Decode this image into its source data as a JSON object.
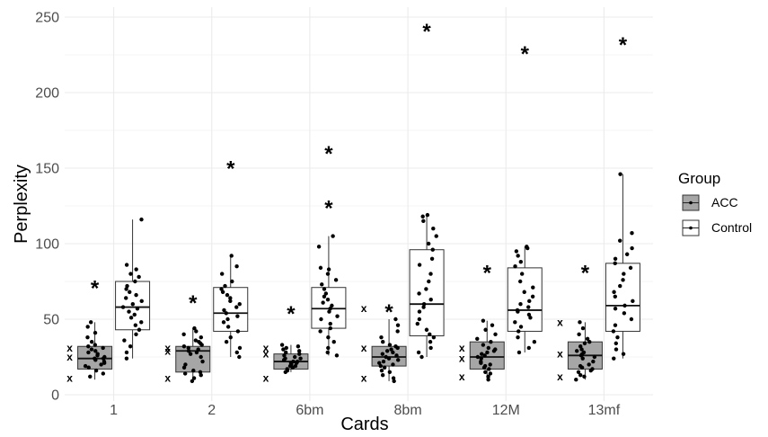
{
  "chart_data": {
    "type": "boxplot",
    "xlabel": "Cards",
    "ylabel": "Perplexity",
    "categories": [
      "1",
      "2",
      "6bm",
      "8bm",
      "12M",
      "13mf"
    ],
    "ylim": [
      0,
      250
    ],
    "yticks": [
      0,
      50,
      100,
      150,
      200,
      250
    ],
    "grid": true,
    "legend": {
      "title": "Group",
      "position": "right",
      "entries": [
        "ACC",
        "Control"
      ]
    },
    "colors": {
      "ACC": "#a6a6a6",
      "Control": "#ffffff"
    },
    "series": [
      {
        "name": "ACC",
        "boxes": [
          {
            "whisker_low": 10,
            "q1": 17,
            "median": 24,
            "q3": 32,
            "whisker_high": 48
          },
          {
            "whisker_low": 9,
            "q1": 15,
            "median": 29,
            "q3": 32,
            "whisker_high": 44
          },
          {
            "whisker_low": 15,
            "q1": 17,
            "median": 22,
            "q3": 27,
            "whisker_high": 33
          },
          {
            "whisker_low": 9,
            "q1": 19,
            "median": 25,
            "q3": 32,
            "whisker_high": 50
          },
          {
            "whisker_low": 10,
            "q1": 17,
            "median": 25,
            "q3": 35,
            "whisker_high": 49
          },
          {
            "whisker_low": 10,
            "q1": 17,
            "median": 26,
            "q3": 35,
            "whisker_high": 48
          }
        ],
        "outliers_x": [
          [
            11,
            25,
            31
          ],
          [
            11,
            29,
            31
          ],
          [
            11,
            27,
            31
          ],
          [
            11,
            31,
            57
          ],
          [
            12,
            24,
            31
          ],
          [
            12,
            27,
            48
          ]
        ],
        "points": [
          [
            12,
            14,
            16,
            18,
            19,
            20,
            21,
            22,
            23,
            24,
            24,
            25,
            26,
            27,
            28,
            29,
            30,
            31,
            32,
            33,
            35,
            38,
            41,
            45,
            48
          ],
          [
            9,
            11,
            13,
            14,
            15,
            16,
            18,
            20,
            22,
            25,
            27,
            28,
            29,
            30,
            31,
            32,
            33,
            34,
            35,
            36,
            38,
            40,
            42,
            44
          ],
          [
            15,
            16,
            17,
            18,
            19,
            19,
            20,
            21,
            21,
            22,
            22,
            23,
            24,
            24,
            25,
            26,
            27,
            28,
            29,
            30,
            31,
            32,
            33
          ],
          [
            9,
            11,
            13,
            15,
            16,
            18,
            19,
            20,
            21,
            22,
            23,
            24,
            25,
            26,
            27,
            28,
            29,
            30,
            31,
            32,
            33,
            35,
            38,
            42,
            46,
            50
          ],
          [
            10,
            12,
            14,
            15,
            17,
            18,
            19,
            20,
            21,
            22,
            24,
            25,
            26,
            27,
            28,
            29,
            30,
            31,
            33,
            35,
            37,
            40,
            43,
            46,
            49
          ],
          [
            10,
            12,
            13,
            15,
            16,
            17,
            18,
            19,
            20,
            22,
            24,
            25,
            26,
            27,
            28,
            29,
            30,
            32,
            34,
            35,
            37,
            40,
            44,
            48
          ]
        ],
        "star": [
          73,
          63,
          56,
          57,
          83,
          83
        ]
      },
      {
        "name": "Control",
        "boxes": [
          {
            "whisker_low": 24,
            "q1": 43,
            "median": 58,
            "q3": 75,
            "whisker_high": 116
          },
          {
            "whisker_low": 25,
            "q1": 42,
            "median": 54,
            "q3": 71,
            "whisker_high": 92
          },
          {
            "whisker_low": 26,
            "q1": 44,
            "median": 57,
            "q3": 71,
            "whisker_high": 105
          },
          {
            "whisker_low": 25,
            "q1": 39,
            "median": 60,
            "q3": 96,
            "whisker_high": 119
          },
          {
            "whisker_low": 28,
            "q1": 42,
            "median": 56,
            "q3": 84,
            "whisker_high": 98
          },
          {
            "whisker_low": 24,
            "q1": 42,
            "median": 59,
            "q3": 87,
            "whisker_high": 146
          }
        ],
        "points": [
          [
            24,
            28,
            32,
            36,
            40,
            43,
            46,
            48,
            51,
            53,
            55,
            57,
            58,
            60,
            62,
            64,
            66,
            68,
            70,
            72,
            75,
            78,
            80,
            83,
            86,
            116
          ],
          [
            25,
            28,
            31,
            35,
            38,
            42,
            45,
            48,
            50,
            52,
            54,
            56,
            58,
            60,
            62,
            64,
            66,
            68,
            70,
            72,
            75,
            80,
            85,
            92
          ],
          [
            26,
            28,
            31,
            35,
            38,
            42,
            44,
            47,
            50,
            52,
            55,
            57,
            59,
            61,
            63,
            65,
            67,
            70,
            73,
            76,
            80,
            83,
            84,
            98,
            105
          ],
          [
            25,
            28,
            31,
            35,
            38,
            40,
            43,
            47,
            50,
            55,
            58,
            60,
            63,
            67,
            70,
            75,
            80,
            86,
            90,
            96,
            100,
            105,
            110,
            115,
            118,
            119
          ],
          [
            28,
            31,
            35,
            38,
            42,
            45,
            48,
            51,
            53,
            55,
            56,
            58,
            60,
            62,
            65,
            68,
            71,
            75,
            80,
            85,
            88,
            92,
            95,
            97,
            98
          ],
          [
            24,
            27,
            30,
            34,
            38,
            42,
            46,
            50,
            54,
            57,
            59,
            62,
            65,
            68,
            72,
            76,
            80,
            84,
            87,
            90,
            93,
            97,
            102,
            107,
            146
          ]
        ],
        "star": [
          null,
          152,
          [
            162,
            126
          ],
          243,
          228,
          234
        ]
      }
    ]
  }
}
